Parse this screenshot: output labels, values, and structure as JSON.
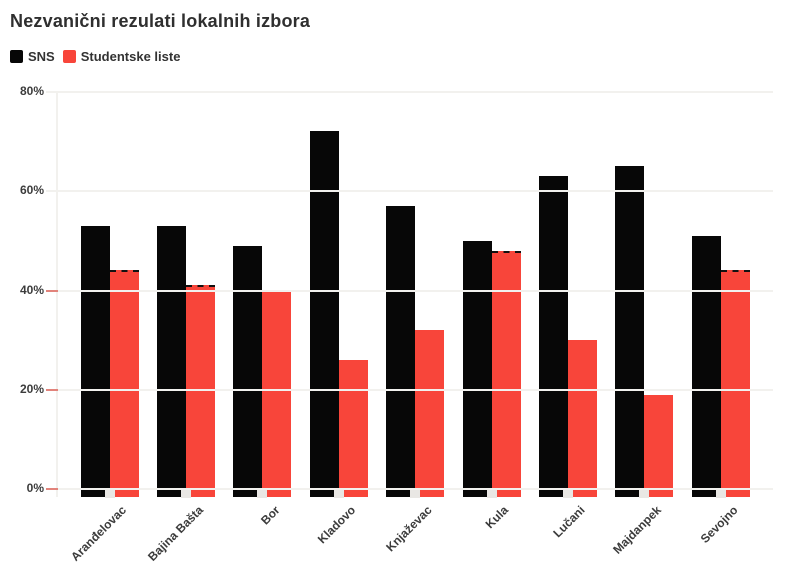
{
  "title": "Nezvanični rezulati lokalnih izbora",
  "legend": [
    {
      "label": "SNS",
      "color": "#070707"
    },
    {
      "label": "Studentske liste",
      "color": "#f8453a"
    }
  ],
  "colors": {
    "background": "#ffffff",
    "gridline": "#f2f1ee",
    "title_text": "#2f2f2f",
    "axis_text": "#3c3c3c",
    "tick_red": "#e2837b",
    "tick_square": "#e9e7e4",
    "bar_black": "#070707",
    "bar_red": "#f8453a",
    "dashed_top_border": "#111111"
  },
  "chart_data": {
    "type": "bar",
    "title": "Nezvanični rezulati lokalnih izbora",
    "xlabel": "",
    "ylabel": "",
    "ylim": [
      0,
      80
    ],
    "grid": "horizontal, light lines drawn over bars",
    "legend_position": "top-left",
    "categories": [
      "Aranđelovac",
      "Bajina Bašta",
      "Bor",
      "Kladovo",
      "Knjaževac",
      "Kula",
      "Lučani",
      "Majdanpek",
      "Sevojno"
    ],
    "series": [
      {
        "name": "SNS",
        "color": "#070707",
        "values": [
          53,
          53,
          49,
          72,
          57,
          50,
          63,
          65,
          51
        ]
      },
      {
        "name": "Studentske liste",
        "color": "#f8453a",
        "values": [
          44,
          41,
          40,
          26,
          32,
          48,
          30,
          19,
          44
        ],
        "dashed_top": [
          true,
          true,
          true,
          false,
          false,
          true,
          false,
          false,
          true
        ]
      }
    ],
    "yticks": [
      {
        "label": "80%",
        "value": 80,
        "tick_color": "#f2f1ee"
      },
      {
        "label": "60%",
        "value": 60,
        "tick_color": "#f2f1ee"
      },
      {
        "label": "40%",
        "value": 40,
        "tick_color": "#e2837b"
      },
      {
        "label": "20%",
        "value": 20,
        "tick_color": "#e2837b"
      },
      {
        "label": "0%",
        "value": 0,
        "tick_color": "#e2837b"
      }
    ]
  }
}
